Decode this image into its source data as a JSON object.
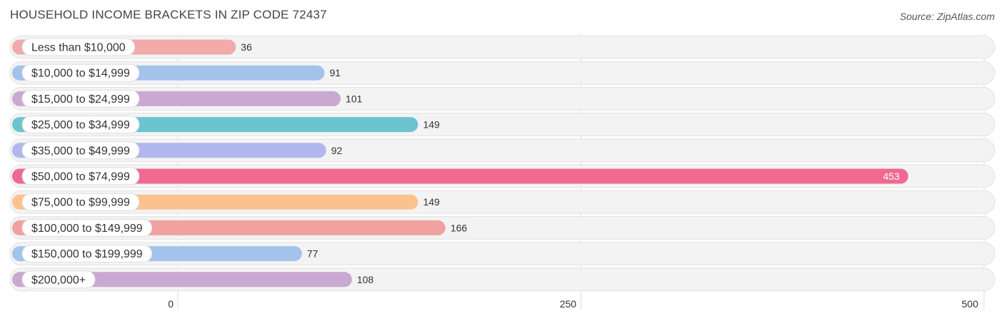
{
  "title": "HOUSEHOLD INCOME BRACKETS IN ZIP CODE 72437",
  "source": "Source: ZipAtlas.com",
  "chart_data": {
    "type": "bar",
    "orientation": "horizontal",
    "title": "HOUSEHOLD INCOME BRACKETS IN ZIP CODE 72437",
    "xlabel": "",
    "ylabel": "",
    "xlim": [
      0,
      500
    ],
    "ticks": [
      0,
      250,
      500
    ],
    "tick_labels": [
      "0",
      "250",
      "500"
    ],
    "categories": [
      "Less than $10,000",
      "$10,000 to $14,999",
      "$15,000 to $24,999",
      "$25,000 to $34,999",
      "$35,000 to $49,999",
      "$50,000 to $74,999",
      "$75,000 to $99,999",
      "$100,000 to $149,999",
      "$150,000 to $199,999",
      "$200,000+"
    ],
    "values": [
      36,
      91,
      101,
      149,
      92,
      453,
      149,
      166,
      77,
      108
    ],
    "colors": [
      "#f2aaaa",
      "#a4c3eb",
      "#c9a9d2",
      "#6cc4cf",
      "#b1b6ec",
      "#f06991",
      "#fcc28e",
      "#f0a1a0",
      "#a4c3eb",
      "#c9a9d2"
    ],
    "grid": true
  }
}
